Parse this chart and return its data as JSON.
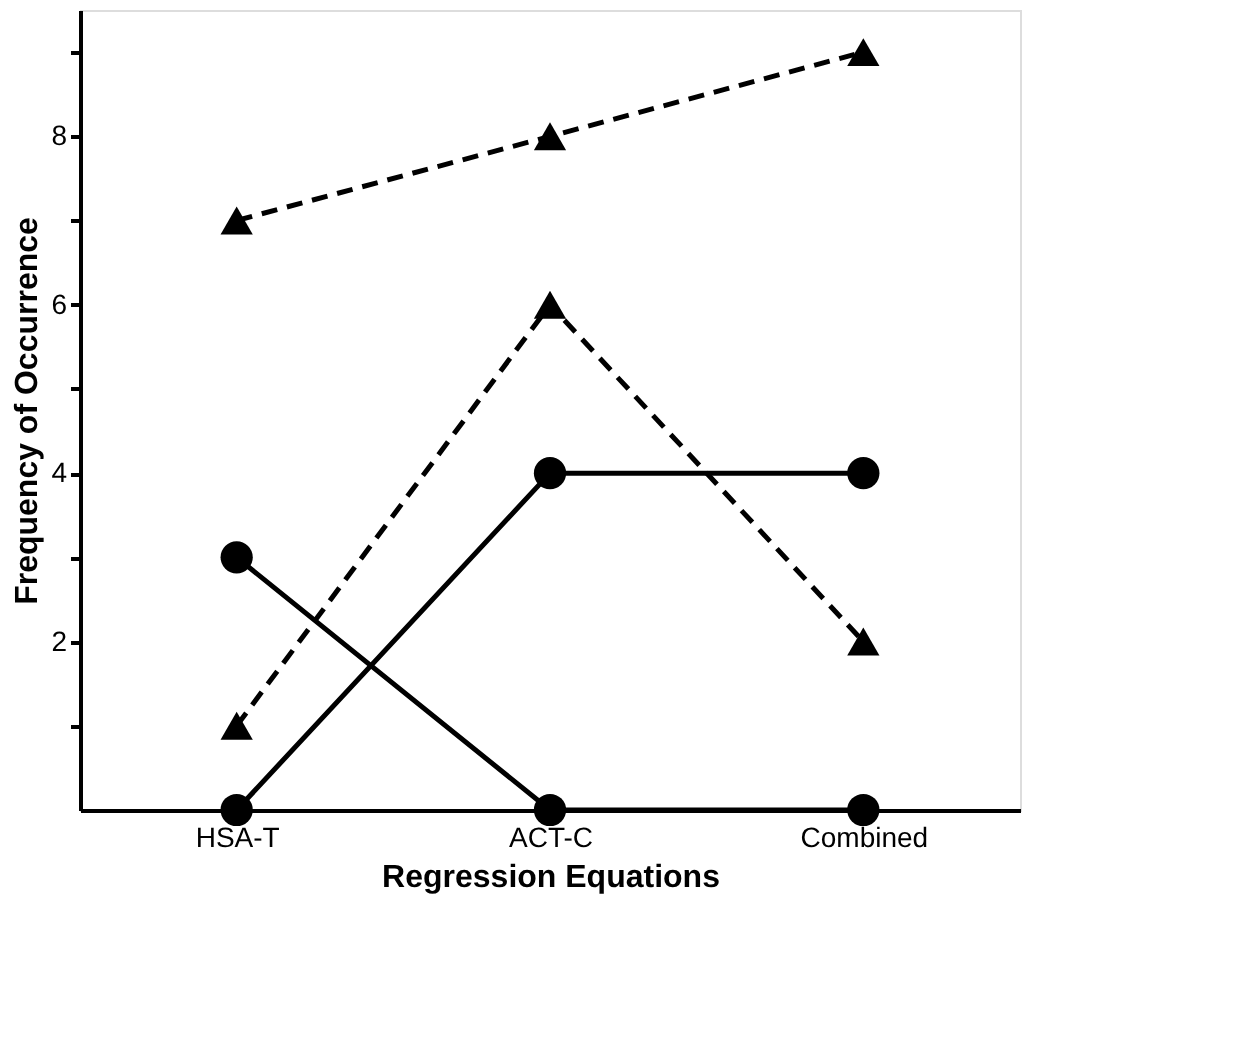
{
  "chart_data": {
    "type": "line",
    "xlabel": "Regression Equations",
    "ylabel": "Frequency of Occurrence",
    "categories": [
      "HSA-T",
      "ACT-C",
      "Combined"
    ],
    "series": [
      {
        "color": "#000000",
        "values": [
          7,
          8,
          9
        ],
        "marker": "triangle",
        "line_style": "dashed"
      },
      {
        "color": "#000000",
        "values": [
          1,
          6,
          2
        ],
        "marker": "triangle",
        "line_style": "dashed"
      },
      {
        "color": "#000000",
        "values": [
          0,
          4,
          4
        ],
        "marker": "circle",
        "line_style": "solid"
      },
      {
        "color": "#000000",
        "values": [
          3,
          0,
          0
        ],
        "marker": "circle",
        "line_style": "solid"
      }
    ],
    "ylim": [
      0,
      9.5
    ],
    "yticks": [
      {
        "value": 1,
        "label": null
      },
      2,
      {
        "value": 3,
        "label": null
      },
      4,
      {
        "value": 5,
        "label": null
      },
      6,
      {
        "value": 7,
        "label": null
      },
      8,
      {
        "value": 9,
        "label": null
      }
    ]
  }
}
